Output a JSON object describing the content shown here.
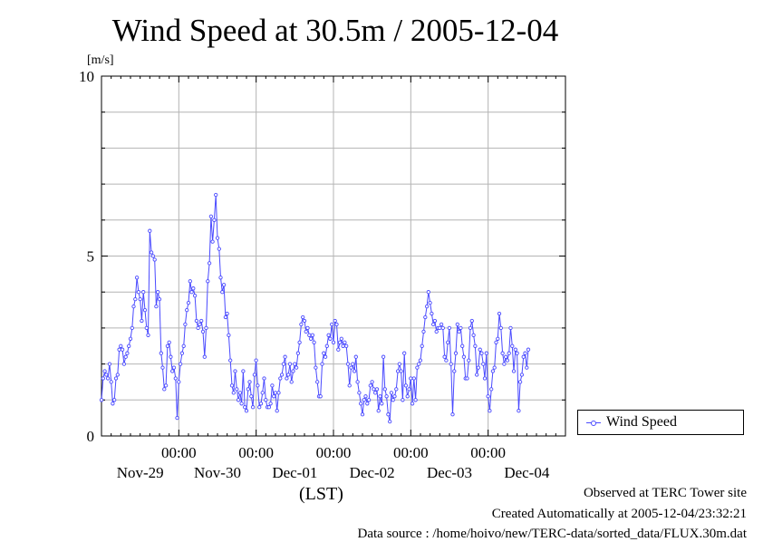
{
  "header": {
    "title": "Wind Speed at 30.5m / 2005-12-04"
  },
  "footer": {
    "observed": "Observed at TERC Tower site",
    "created": "Created Automatically at 2005-12-04/23:32:21",
    "source": "Data source : /home/hoivo/new/TERC-data/sorted_data/FLUX.30m.dat"
  },
  "chart_data": {
    "type": "line",
    "title": "Wind Speed at 30.5m / 2005-12-04",
    "ylabel": "[m/s]",
    "xlabel": "(LST)",
    "ylim": [
      0,
      10
    ],
    "y_major_ticks": [
      0,
      5,
      10
    ],
    "y_minor_step": 1,
    "xlim_days": [
      0,
      6
    ],
    "x_tick_days": [
      1,
      2,
      3,
      4,
      5
    ],
    "x_tick_labels": [
      "00:00",
      "00:00",
      "00:00",
      "00:00",
      "00:00"
    ],
    "date_labels": [
      "Nov-29",
      "Nov-30",
      "Dec-01",
      "Dec-02",
      "Dec-03",
      "Dec-04"
    ],
    "grid": true,
    "legend": "right",
    "series": [
      {
        "name": "Wind Speed",
        "color": "#4a4aff",
        "x_start_day": 0,
        "x_step_day": 0.02083,
        "values": [
          1.0,
          1.6,
          1.8,
          1.7,
          1.6,
          2.0,
          1.5,
          0.9,
          1.0,
          1.6,
          1.7,
          2.4,
          2.5,
          2.4,
          2.0,
          2.2,
          2.3,
          2.5,
          2.7,
          3.0,
          3.6,
          3.8,
          4.4,
          4.0,
          3.8,
          3.2,
          4.0,
          3.5,
          3.0,
          2.8,
          5.7,
          5.1,
          5.0,
          4.9,
          3.6,
          4.0,
          3.8,
          2.3,
          1.9,
          1.3,
          1.4,
          2.5,
          2.6,
          2.2,
          1.8,
          1.9,
          1.6,
          0.5,
          1.5,
          2.0,
          2.3,
          2.5,
          3.1,
          3.5,
          3.7,
          4.3,
          4.0,
          4.1,
          3.9,
          3.2,
          3.0,
          3.1,
          3.2,
          2.9,
          2.2,
          3.0,
          4.3,
          4.8,
          6.1,
          5.4,
          6.0,
          6.7,
          5.5,
          5.2,
          4.4,
          4.0,
          4.2,
          3.3,
          3.4,
          2.8,
          2.1,
          1.4,
          1.2,
          1.8,
          1.3,
          1.0,
          1.2,
          0.9,
          1.8,
          0.8,
          0.7,
          1.3,
          1.5,
          1.1,
          0.8,
          1.7,
          2.1,
          1.4,
          0.8,
          0.9,
          1.2,
          1.6,
          1.0,
          0.8,
          0.8,
          0.9,
          1.4,
          1.1,
          1.2,
          0.7,
          1.2,
          1.6,
          1.7,
          2.0,
          2.2,
          1.6,
          1.7,
          2.0,
          1.5,
          1.8,
          2.0,
          1.9,
          2.3,
          2.6,
          3.1,
          3.3,
          3.2,
          2.9,
          3.0,
          2.8,
          2.7,
          2.8,
          2.6,
          1.9,
          1.5,
          1.1,
          1.1,
          2.0,
          2.3,
          2.2,
          2.5,
          2.8,
          2.7,
          3.1,
          2.6,
          3.2,
          3.1,
          2.4,
          2.6,
          2.7,
          2.5,
          2.6,
          2.5,
          2.0,
          1.4,
          1.9,
          2.0,
          1.8,
          2.2,
          1.5,
          1.2,
          0.9,
          0.6,
          1.0,
          1.1,
          0.9,
          1.0,
          1.4,
          1.5,
          1.3,
          1.2,
          1.3,
          0.7,
          1.1,
          0.9,
          2.2,
          1.3,
          1.1,
          0.6,
          0.4,
          1.2,
          1.0,
          1.1,
          1.3,
          1.8,
          2.0,
          1.8,
          1.0,
          2.3,
          1.4,
          1.1,
          1.3,
          1.6,
          0.9,
          1.6,
          1.0,
          1.9,
          2.0,
          2.1,
          2.5,
          2.9,
          3.3,
          3.6,
          4.0,
          3.7,
          3.4,
          3.1,
          3.2,
          2.9,
          3.0,
          3.0,
          3.1,
          3.0,
          2.2,
          2.1,
          2.6,
          3.0,
          2.0,
          0.6,
          1.8,
          2.3,
          3.1,
          2.9,
          3.0,
          2.5,
          2.2,
          1.6,
          1.6,
          2.1,
          3.0,
          3.2,
          2.8,
          2.5,
          1.7,
          1.9,
          2.4,
          2.3,
          2.0,
          1.6,
          2.3,
          1.1,
          0.7,
          1.3,
          1.8,
          1.9,
          2.6,
          2.7,
          3.4,
          3.0,
          2.3,
          2.0,
          2.2,
          2.1,
          2.3,
          3.0,
          2.5,
          1.8,
          2.4,
          2.3,
          0.7,
          1.5,
          1.7,
          2.2,
          2.3,
          1.9,
          2.4
        ]
      }
    ]
  }
}
